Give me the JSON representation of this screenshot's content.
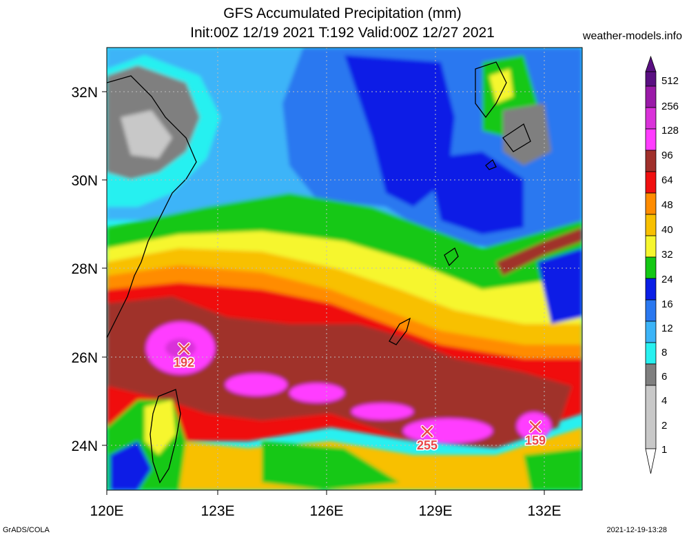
{
  "header": {
    "title": "GFS Accumulated Precipitation (mm)",
    "subtitle": "Init:00Z 12/19 2021 T:192 Valid:00Z 12/27 2021",
    "site": "weather-models.info"
  },
  "footer": {
    "left": "GrADS/COLA",
    "right": "2021-12-19-13:28"
  },
  "axes": {
    "lon_ticks": [
      "120E",
      "123E",
      "126E",
      "129E",
      "132E"
    ],
    "lat_ticks": [
      "32N",
      "30N",
      "28N",
      "26N",
      "24N"
    ]
  },
  "markers": [
    {
      "label": "192"
    },
    {
      "label": "255"
    },
    {
      "label": "159"
    }
  ],
  "colorbar": {
    "labels": [
      "512",
      "256",
      "128",
      "96",
      "64",
      "48",
      "40",
      "32",
      "24",
      "16",
      "12",
      "8",
      "6",
      "4",
      "2",
      "1"
    ],
    "colors": {
      "c512": "#5a0f82",
      "c256": "#9a1aa8",
      "c128": "#d932d9",
      "c96": "#ff3cff",
      "c64": "#a0302b",
      "c48": "#f01010",
      "c40": "#ff8c00",
      "c32": "#f8c000",
      "c24": "#f6f62e",
      "c16": "#14c814",
      "c12": "#0a1ee6",
      "c8": "#2a78f0",
      "c6": "#3cb4f8",
      "c4": "#28f0f0",
      "c2": "#7f7f7f",
      "c1": "#c8c8c8"
    }
  }
}
